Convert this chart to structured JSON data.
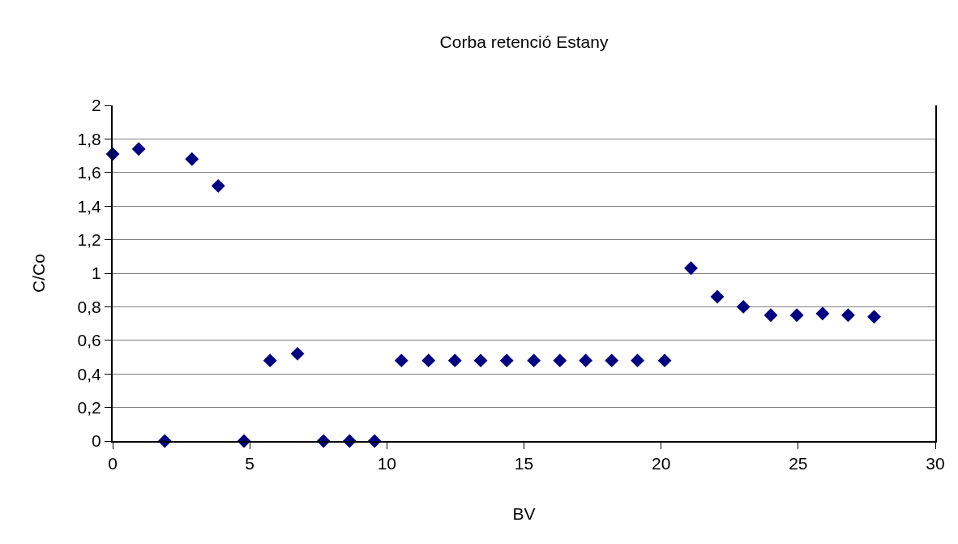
{
  "chart_data": {
    "type": "scatter",
    "title": "Corba retenció Estany",
    "xlabel": "BV",
    "ylabel": "C/Co",
    "x": [
      0,
      0.95,
      1.9,
      2.89,
      3.85,
      4.79,
      5.74,
      6.74,
      7.69,
      8.64,
      9.55,
      10.53,
      11.52,
      12.48,
      13.42,
      14.37,
      15.36,
      16.31,
      17.25,
      18.2,
      19.14,
      20.13,
      21.09,
      22.05,
      23.0,
      24.0,
      24.95,
      25.89,
      26.82,
      27.77
    ],
    "series": [
      {
        "color": "#000080",
        "values": [
          1.71,
          1.74,
          0,
          1.68,
          1.52,
          0,
          0.48,
          0.52,
          0,
          0,
          0,
          0.48,
          0.48,
          0.48,
          0.48,
          0.48,
          0.48,
          0.48,
          0.48,
          0.48,
          0.48,
          0.48,
          1.03,
          0.86,
          0.8,
          0.75,
          0.75,
          0.76,
          0.75,
          0.74
        ]
      }
    ],
    "xlim": [
      0,
      30
    ],
    "xticks": [
      0,
      5,
      10,
      15,
      20,
      25,
      30
    ],
    "ylim": [
      0,
      2
    ],
    "yticks": [
      0,
      {
        "value": 0.2,
        "label": "0,2"
      },
      {
        "value": 0.4,
        "label": "0,4"
      },
      {
        "value": 0.6,
        "label": "0,6"
      },
      {
        "value": 0.8,
        "label": "0,8"
      },
      1,
      {
        "value": 1.2,
        "label": "1,2"
      },
      {
        "value": 1.4,
        "label": "1,4"
      },
      {
        "value": 1.6,
        "label": "1,6"
      },
      {
        "value": 1.8,
        "label": "1,8"
      },
      2
    ],
    "grid": "y",
    "marker": "diamond"
  }
}
